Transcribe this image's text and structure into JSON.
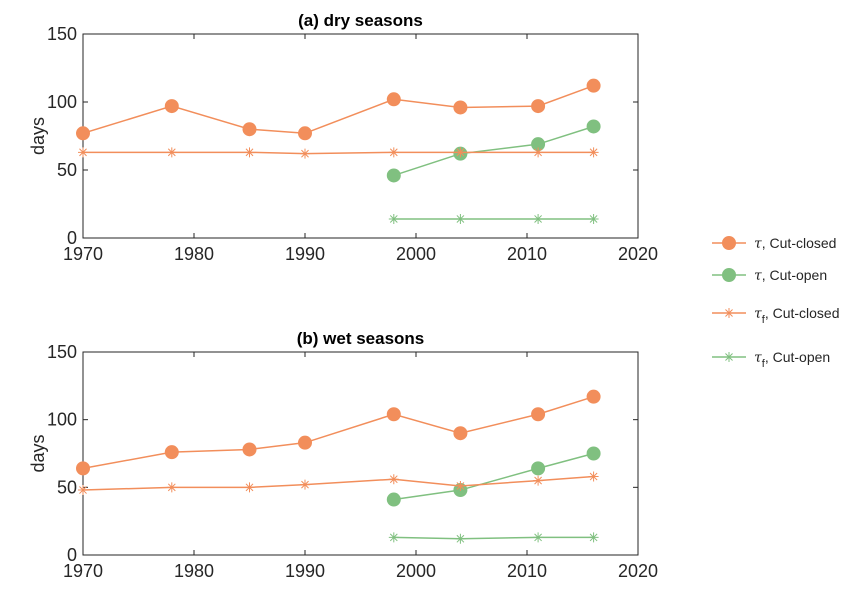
{
  "chart_data": [
    {
      "type": "line",
      "title": "(a) dry seasons",
      "ylabel": "days",
      "xlabel": "",
      "xlim": [
        1970,
        2020
      ],
      "ylim": [
        0,
        150
      ],
      "xticks": [
        1970,
        1980,
        1990,
        2000,
        2010,
        2020
      ],
      "yticks": [
        0,
        50,
        100,
        150
      ],
      "grid": false,
      "series": [
        {
          "key": "tau_closed",
          "marker": "circle",
          "color": "#F28E5B",
          "x": [
            1970,
            1978,
            1985,
            1990,
            1998,
            2004,
            2011,
            2016
          ],
          "y": [
            77,
            97,
            80,
            77,
            102,
            96,
            97,
            112
          ]
        },
        {
          "key": "tau_open",
          "marker": "circle",
          "color": "#80C080",
          "x": [
            1998,
            2004,
            2011,
            2016
          ],
          "y": [
            46,
            62,
            69,
            82
          ]
        },
        {
          "key": "tauf_closed",
          "marker": "star",
          "color": "#F28E5B",
          "x": [
            1970,
            1978,
            1985,
            1990,
            1998,
            2004,
            2011,
            2016
          ],
          "y": [
            63,
            63,
            63,
            62,
            63,
            63,
            63,
            63
          ]
        },
        {
          "key": "tauf_open",
          "marker": "star",
          "color": "#80C080",
          "x": [
            1998,
            2004,
            2011,
            2016
          ],
          "y": [
            14,
            14,
            14,
            14
          ]
        }
      ]
    },
    {
      "type": "line",
      "title": "(b) wet seasons",
      "ylabel": "days",
      "xlabel": "",
      "xlim": [
        1970,
        2020
      ],
      "ylim": [
        0,
        150
      ],
      "xticks": [
        1970,
        1980,
        1990,
        2000,
        2010,
        2020
      ],
      "yticks": [
        0,
        50,
        100,
        150
      ],
      "grid": false,
      "series": [
        {
          "key": "tau_closed",
          "marker": "circle",
          "color": "#F28E5B",
          "x": [
            1970,
            1978,
            1985,
            1990,
            1998,
            2004,
            2011,
            2016
          ],
          "y": [
            64,
            76,
            78,
            83,
            104,
            90,
            104,
            117
          ]
        },
        {
          "key": "tau_open",
          "marker": "circle",
          "color": "#80C080",
          "x": [
            1998,
            2004,
            2011,
            2016
          ],
          "y": [
            41,
            48,
            64,
            75
          ]
        },
        {
          "key": "tauf_closed",
          "marker": "star",
          "color": "#F28E5B",
          "x": [
            1970,
            1978,
            1985,
            1990,
            1998,
            2004,
            2011,
            2016
          ],
          "y": [
            48,
            50,
            50,
            52,
            56,
            51,
            55,
            58
          ]
        },
        {
          "key": "tauf_open",
          "marker": "star",
          "color": "#80C080",
          "x": [
            1998,
            2004,
            2011,
            2016
          ],
          "y": [
            13,
            12,
            13,
            13
          ]
        }
      ]
    }
  ],
  "legend": {
    "placement": "right",
    "entries": [
      {
        "key": "tau_closed",
        "symbol": "τ",
        "subscript": "",
        "label": ", Cut-closed",
        "marker": "circle",
        "color": "#F28E5B"
      },
      {
        "key": "tau_open",
        "symbol": "τ",
        "subscript": "",
        "label": ", Cut-open",
        "marker": "circle",
        "color": "#80C080"
      },
      {
        "key": "tauf_closed",
        "symbol": "τ",
        "subscript": "f",
        "label": ", Cut-closed",
        "marker": "star",
        "color": "#F28E5B"
      },
      {
        "key": "tauf_open",
        "symbol": "τ",
        "subscript": "f",
        "label": ", Cut-open",
        "marker": "star",
        "color": "#80C080"
      }
    ]
  }
}
